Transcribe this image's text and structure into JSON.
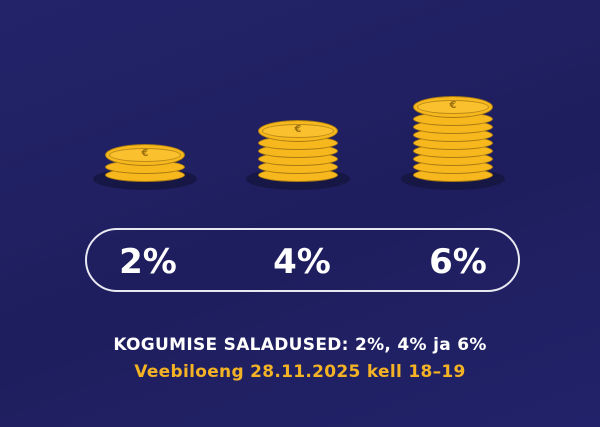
{
  "colors": {
    "background": "#1f1f5e",
    "coin": "#f7b81e",
    "accent": "#f4b324",
    "text": "#ffffff"
  },
  "stacks": [
    {
      "icon": "euro-coin-stack-icon",
      "coin_count": 3,
      "label": "2%"
    },
    {
      "icon": "euro-coin-stack-icon",
      "coin_count": 6,
      "label": "4%"
    },
    {
      "icon": "euro-coin-stack-icon",
      "coin_count": 9,
      "label": "6%"
    }
  ],
  "title": "KOGUMISE SALADUSED: 2%, 4% ja 6%",
  "subtitle": "Veebiloeng 28.11.2025 kell 18–19"
}
